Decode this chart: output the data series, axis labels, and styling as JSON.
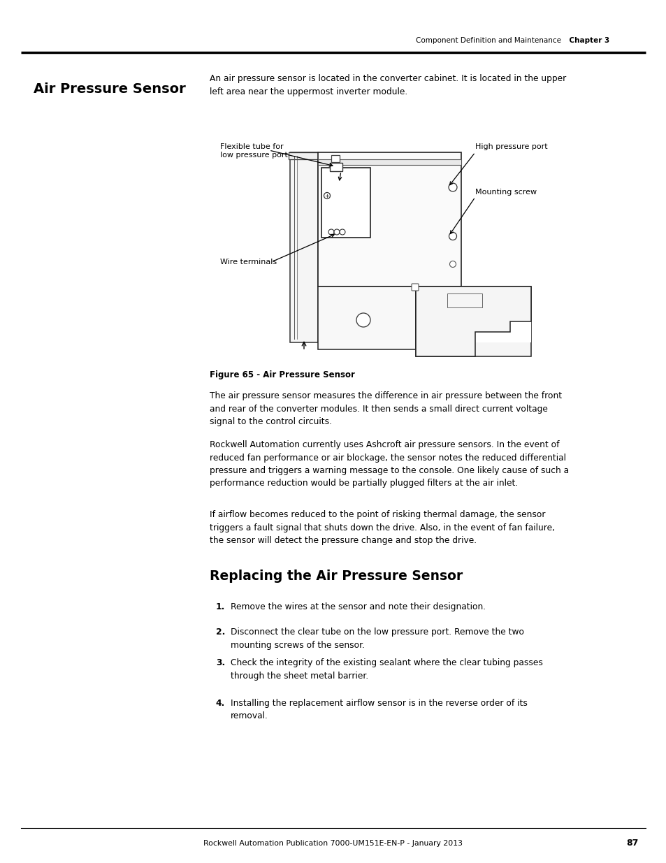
{
  "page_bg": "#ffffff",
  "header_text": "Component Definition and Maintenance",
  "header_chapter": "Chapter 3",
  "section_title": "Air Pressure Sensor",
  "intro_text": "An air pressure sensor is located in the converter cabinet. It is located in the upper\nleft area near the uppermost inverter module.",
  "figure_caption": "Figure 65 - Air Pressure Sensor",
  "para1": "The air pressure sensor measures the difference in air pressure between the front\nand rear of the converter modules. It then sends a small direct current voltage\nsignal to the control circuits.",
  "para2": "Rockwell Automation currently uses Ashcroft air pressure sensors. In the event of\nreduced fan performance or air blockage, the sensor notes the reduced differential\npressure and triggers a warning message to the console. One likely cause of such a\nperformance reduction would be partially plugged filters at the air inlet.",
  "para3": "If airflow becomes reduced to the point of risking thermal damage, the sensor\ntriggers a fault signal that shuts down the drive. Also, in the event of fan failure,\nthe sensor will detect the pressure change and stop the drive.",
  "section2_title": "Replacing the Air Pressure Sensor",
  "steps": [
    "Remove the wires at the sensor and note their designation.",
    "Disconnect the clear tube on the low pressure port. Remove the two\nmounting screws of the sensor.",
    "Check the integrity of the existing sealant where the clear tubing passes\nthrough the sheet metal barrier.",
    "Installing the replacement airflow sensor is in the reverse order of its\nremoval."
  ],
  "footer_text": "Rockwell Automation Publication 7000-UM151E-EN-P - January 2013",
  "footer_page": "87",
  "label_flexible": "Flexible tube for\nlow pressure port",
  "label_high_pressure": "High pressure port",
  "label_mounting_screw": "Mounting screw",
  "label_wire_terminals": "Wire terminals"
}
